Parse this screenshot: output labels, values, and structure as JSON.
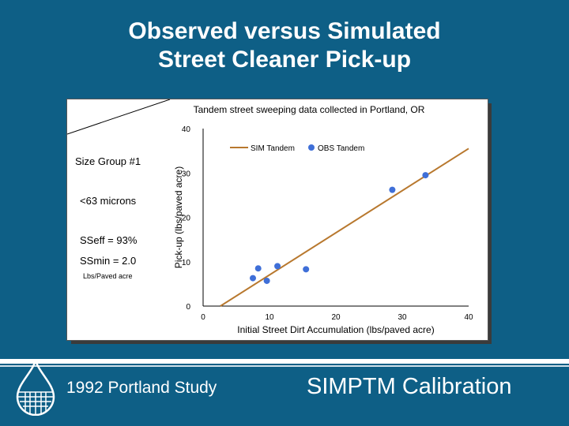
{
  "slide": {
    "title_line1": "Observed versus Simulated",
    "title_line2": "Street Cleaner Pick-up"
  },
  "side_notes": {
    "size_group": "Size Group #1",
    "particle_size": "<63 microns",
    "sseff": "SSeff = 93%",
    "ssmin": "SSmin = 2.0",
    "ssmin_units": "Lbs/Paved acre"
  },
  "chart_data": {
    "type": "scatter",
    "title": "Tandem street sweeping data collected in Portland, OR",
    "xlabel": "Initial Street Dirt Accumulation (lbs/paved acre)",
    "ylabel": "Pick-up (lbs/paved acre)",
    "xlim": [
      0,
      40
    ],
    "ylim": [
      0,
      40
    ],
    "x_ticks": [
      "0",
      "10",
      "20",
      "30",
      "40"
    ],
    "y_ticks": [
      "0",
      "10",
      "20",
      "30",
      "40"
    ],
    "legend_position": "top",
    "series": [
      {
        "name": "SIM Tandem",
        "kind": "line",
        "color": "#b8782e",
        "x": [
          2.6,
          40
        ],
        "y": [
          0,
          35.5
        ]
      },
      {
        "name": "OBS Tandem",
        "kind": "points",
        "color": "#3f6fd8",
        "x": [
          7.5,
          8.3,
          9.6,
          11.2,
          15.5,
          28.5,
          33.5
        ],
        "y": [
          6.3,
          8.5,
          5.7,
          9.0,
          8.3,
          26.2,
          29.5
        ]
      }
    ]
  },
  "footer": {
    "left_text": "1992 Portland Study",
    "right_text": "SIMPTM Calibration"
  },
  "colors": {
    "background": "#0e5f86",
    "sim_line": "#b8782e",
    "obs_points": "#3f6fd8"
  }
}
